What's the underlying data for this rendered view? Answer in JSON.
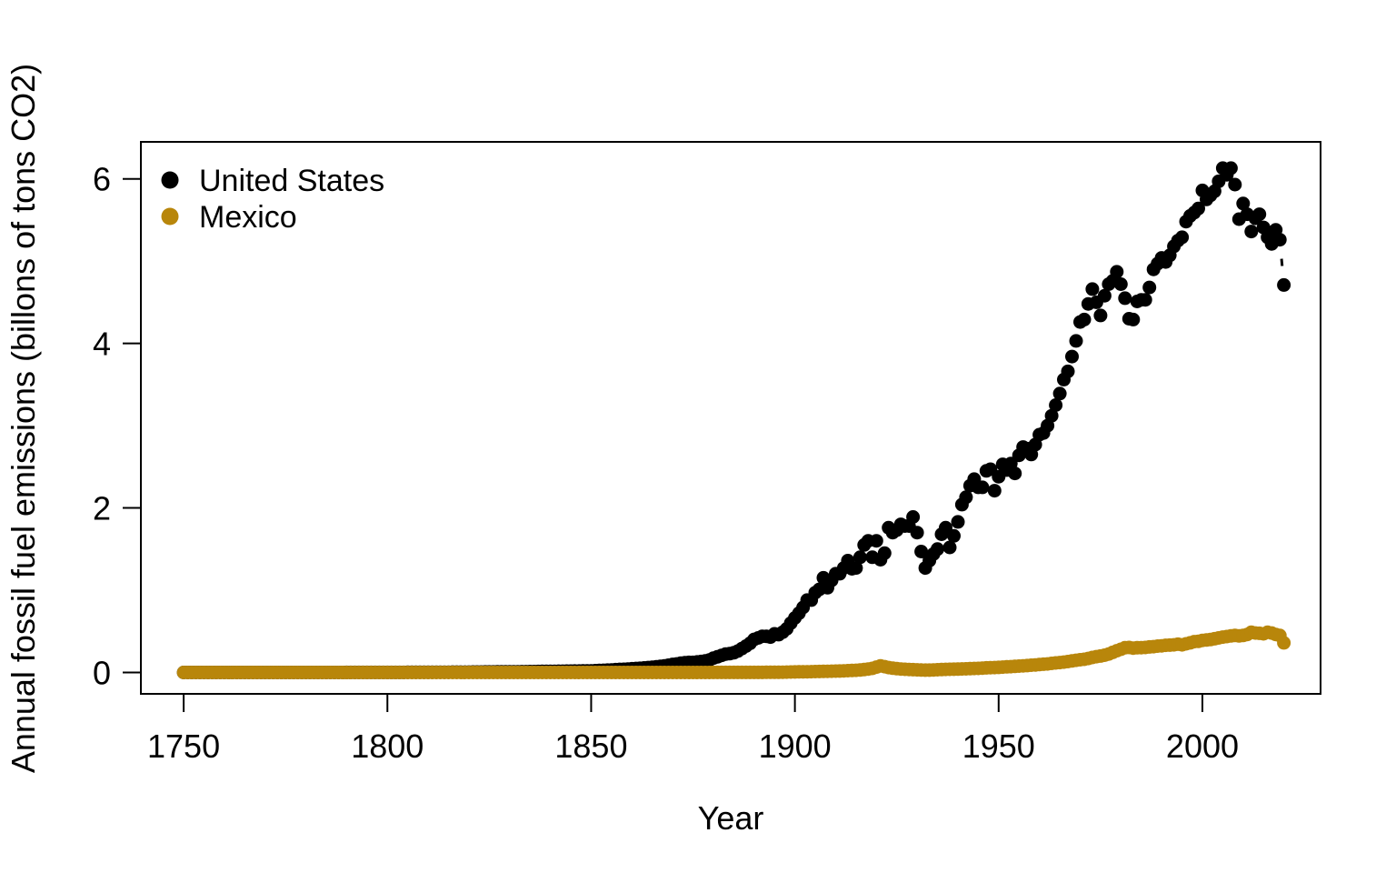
{
  "chart_data": {
    "type": "scatter",
    "title": "",
    "xlabel": "Year",
    "ylabel": "Annual fossil fuel emissions (billons of tons CO2)",
    "xlim": [
      1739.5,
      2029.0
    ],
    "ylim": [
      -0.26,
      6.45
    ],
    "x_ticks": [
      1750,
      1800,
      1850,
      1900,
      1950,
      2000
    ],
    "y_ticks": [
      0,
      2,
      4,
      6
    ],
    "grid": "off",
    "legend_position": "topleft",
    "point_radius_px": 7.5,
    "frame_color": "#000000",
    "series": [
      {
        "name": "United States",
        "color": "#000000",
        "start_year": 1750,
        "x_step": 1,
        "end_year": 2020,
        "values": [
          0.0002,
          0.0002,
          0.0002,
          0.0002,
          0.0002,
          0.0002,
          0.0002,
          0.0002,
          0.0002,
          0.0002,
          0.0002,
          0.0002,
          0.0002,
          0.0002,
          0.0002,
          0.0002,
          0.0002,
          0.0002,
          0.0002,
          0.0002,
          0.0002,
          0.0002,
          0.0002,
          0.0002,
          0.0002,
          0.0002,
          0.0002,
          0.0002,
          0.0002,
          0.0002,
          0.0002,
          0.0002,
          0.0002,
          0.0002,
          0.0002,
          0.0002,
          0.0002,
          0.0002,
          0.0002,
          0.0002,
          0.0005,
          0.0005,
          0.0005,
          0.0005,
          0.0005,
          0.0005,
          0.0005,
          0.0005,
          0.0005,
          0.0005,
          0.001,
          0.001,
          0.001,
          0.001,
          0.001,
          0.002,
          0.002,
          0.002,
          0.002,
          0.002,
          0.002,
          0.002,
          0.003,
          0.003,
          0.003,
          0.003,
          0.004,
          0.004,
          0.004,
          0.004,
          0.004,
          0.005,
          0.005,
          0.005,
          0.006,
          0.006,
          0.006,
          0.007,
          0.007,
          0.008,
          0.008,
          0.009,
          0.009,
          0.01,
          0.01,
          0.011,
          0.011,
          0.012,
          0.013,
          0.014,
          0.014,
          0.014,
          0.015,
          0.015,
          0.016,
          0.016,
          0.017,
          0.018,
          0.019,
          0.02,
          0.02,
          0.022,
          0.024,
          0.026,
          0.029,
          0.031,
          0.034,
          0.037,
          0.039,
          0.042,
          0.045,
          0.048,
          0.051,
          0.055,
          0.059,
          0.063,
          0.068,
          0.074,
          0.08,
          0.088,
          0.098,
          0.104,
          0.112,
          0.119,
          0.122,
          0.123,
          0.128,
          0.134,
          0.14,
          0.152,
          0.174,
          0.19,
          0.208,
          0.223,
          0.229,
          0.24,
          0.26,
          0.29,
          0.32,
          0.355,
          0.402,
          0.42,
          0.44,
          0.44,
          0.43,
          0.47,
          0.46,
          0.49,
          0.53,
          0.6,
          0.663,
          0.72,
          0.79,
          0.88,
          0.88,
          0.97,
          1.01,
          1.15,
          1.03,
          1.12,
          1.2,
          1.2,
          1.27,
          1.36,
          1.26,
          1.27,
          1.4,
          1.55,
          1.6,
          1.4,
          1.6,
          1.37,
          1.45,
          1.76,
          1.7,
          1.73,
          1.8,
          1.78,
          1.78,
          1.89,
          1.7,
          1.47,
          1.27,
          1.36,
          1.44,
          1.5,
          1.68,
          1.76,
          1.52,
          1.66,
          1.83,
          2.04,
          2.13,
          2.27,
          2.35,
          2.25,
          2.25,
          2.45,
          2.47,
          2.21,
          2.38,
          2.53,
          2.46,
          2.54,
          2.42,
          2.64,
          2.74,
          2.72,
          2.65,
          2.77,
          2.89,
          2.91,
          3.0,
          3.12,
          3.25,
          3.39,
          3.56,
          3.66,
          3.84,
          4.03,
          4.26,
          4.29,
          4.48,
          4.66,
          4.5,
          4.34,
          4.58,
          4.72,
          4.76,
          4.87,
          4.72,
          4.55,
          4.3,
          4.29,
          4.51,
          4.53,
          4.53,
          4.68,
          4.9,
          4.97,
          5.04,
          4.99,
          5.07,
          5.18,
          5.25,
          5.29,
          5.48,
          5.55,
          5.59,
          5.64,
          5.86,
          5.75,
          5.8,
          5.85,
          5.97,
          6.13,
          6.05,
          6.13,
          5.93,
          5.51,
          5.7,
          5.57,
          5.36,
          5.52,
          5.57,
          5.41,
          5.29,
          5.21,
          5.38,
          5.26,
          4.71
        ]
      },
      {
        "name": "Mexico",
        "color": "#B8860B",
        "start_year": 1750,
        "x_step": 1,
        "end_year": 2020,
        "values": [
          0.0001,
          0.0001,
          0.0001,
          0.0001,
          0.0001,
          0.0001,
          0.0001,
          0.0001,
          0.0001,
          0.0001,
          0.0001,
          0.0001,
          0.0001,
          0.0001,
          0.0001,
          0.0001,
          0.0001,
          0.0001,
          0.0001,
          0.0001,
          0.0001,
          0.0001,
          0.0001,
          0.0001,
          0.0001,
          0.0001,
          0.0001,
          0.0001,
          0.0001,
          0.0001,
          0.0001,
          0.0001,
          0.0001,
          0.0001,
          0.0001,
          0.0001,
          0.0001,
          0.0001,
          0.0001,
          0.0001,
          0.0001,
          0.0001,
          0.0001,
          0.0001,
          0.0001,
          0.0001,
          0.0001,
          0.0001,
          0.0001,
          0.0001,
          0.0002,
          0.0002,
          0.0002,
          0.0002,
          0.0002,
          0.0002,
          0.0002,
          0.0002,
          0.0002,
          0.0002,
          0.0002,
          0.0002,
          0.0002,
          0.0002,
          0.0002,
          0.0002,
          0.0002,
          0.0002,
          0.0002,
          0.0002,
          0.0002,
          0.0002,
          0.0002,
          0.0002,
          0.0002,
          0.0002,
          0.0002,
          0.0002,
          0.0002,
          0.0002,
          0.0002,
          0.0002,
          0.0002,
          0.0002,
          0.0002,
          0.0002,
          0.0002,
          0.0002,
          0.0002,
          0.0002,
          0.0002,
          0.0002,
          0.0002,
          0.0002,
          0.0002,
          0.0002,
          0.0002,
          0.0002,
          0.0002,
          0.0002,
          0.0003,
          0.0003,
          0.0003,
          0.0003,
          0.0003,
          0.0003,
          0.0003,
          0.0003,
          0.0003,
          0.0003,
          0.0003,
          0.0003,
          0.0003,
          0.0003,
          0.0003,
          0.0003,
          0.0003,
          0.0003,
          0.0003,
          0.0003,
          0.0003,
          0.0003,
          0.0003,
          0.0003,
          0.0003,
          0.0003,
          0.0003,
          0.0003,
          0.0003,
          0.0003,
          0.0005,
          0.0005,
          0.0006,
          0.0006,
          0.0007,
          0.0007,
          0.0008,
          0.0008,
          0.0009,
          0.0009,
          0.001,
          0.0012,
          0.0014,
          0.0016,
          0.0018,
          0.002,
          0.0025,
          0.003,
          0.004,
          0.005,
          0.006,
          0.007,
          0.008,
          0.009,
          0.01,
          0.011,
          0.012,
          0.013,
          0.014,
          0.015,
          0.016,
          0.018,
          0.02,
          0.022,
          0.024,
          0.026,
          0.03,
          0.035,
          0.042,
          0.05,
          0.065,
          0.08,
          0.07,
          0.06,
          0.052,
          0.046,
          0.042,
          0.038,
          0.036,
          0.034,
          0.032,
          0.03,
          0.028,
          0.029,
          0.031,
          0.033,
          0.035,
          0.037,
          0.038,
          0.04,
          0.041,
          0.043,
          0.044,
          0.046,
          0.048,
          0.05,
          0.053,
          0.056,
          0.058,
          0.06,
          0.062,
          0.065,
          0.068,
          0.07,
          0.074,
          0.077,
          0.08,
          0.084,
          0.088,
          0.092,
          0.096,
          0.1,
          0.104,
          0.11,
          0.116,
          0.12,
          0.126,
          0.132,
          0.14,
          0.148,
          0.155,
          0.16,
          0.17,
          0.182,
          0.192,
          0.2,
          0.21,
          0.224,
          0.244,
          0.264,
          0.282,
          0.3,
          0.304,
          0.296,
          0.3,
          0.302,
          0.304,
          0.31,
          0.314,
          0.32,
          0.324,
          0.33,
          0.332,
          0.336,
          0.344,
          0.336,
          0.348,
          0.36,
          0.374,
          0.378,
          0.39,
          0.394,
          0.4,
          0.41,
          0.42,
          0.43,
          0.436,
          0.444,
          0.45,
          0.444,
          0.45,
          0.462,
          0.49,
          0.48,
          0.476,
          0.47,
          0.488,
          0.48,
          0.462,
          0.45,
          0.36
        ]
      }
    ]
  }
}
